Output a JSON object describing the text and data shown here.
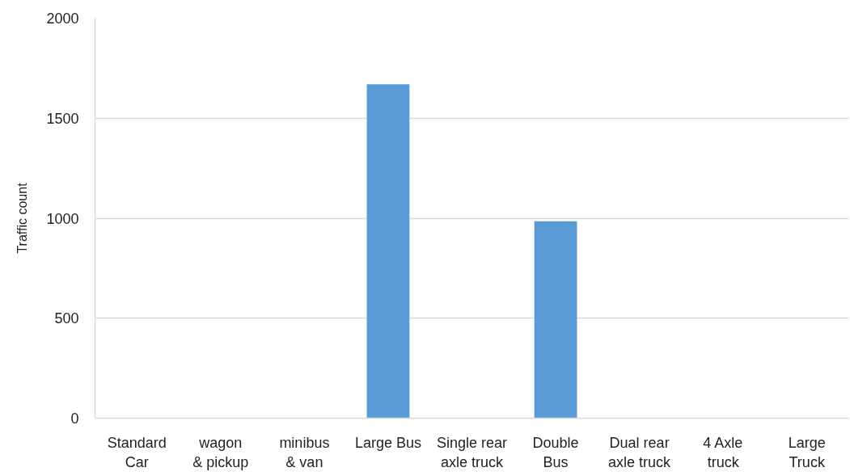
{
  "chart_data": {
    "type": "bar",
    "ylabel": "Traffic count",
    "categories": [
      "Standard\nCar",
      "wagon\n& pickup",
      "minibus\n& van",
      "Large Bus",
      "Single rear\naxle truck",
      "Double\nBus",
      "Dual rear\naxle truck",
      "4 Axle\ntruck",
      "Large\nTruck"
    ],
    "values": [
      0,
      0,
      0,
      1670,
      0,
      985,
      0,
      0,
      0
    ],
    "color": "#5b9bd5",
    "ylim": [
      0,
      2000
    ],
    "yticks": [
      0,
      500,
      1000,
      1500,
      2000
    ],
    "grid": "y"
  }
}
